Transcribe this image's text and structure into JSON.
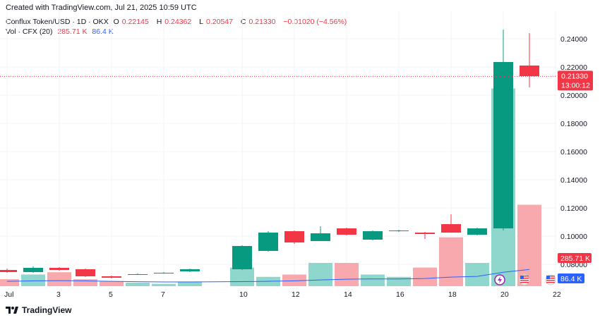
{
  "header": {
    "created_text": "Created with TradingView.com, Jul 21, 2025 10:59 UTC"
  },
  "legend": {
    "symbol": "Conflux Token/USD · 1D · OKX",
    "open_label": "O",
    "open": "0.22145",
    "high_label": "H",
    "high": "0.24362",
    "low_label": "L",
    "low": "0.20547",
    "close_label": "C",
    "close": "0.21330",
    "change": "−0.01020 (−4.56%)",
    "vol_label": "Vol · CFX (20)",
    "vol_value": "285.71 K",
    "vol_ma": "86.4 K"
  },
  "footer": {
    "brand": "TradingView"
  },
  "colors": {
    "up": "#089981",
    "down": "#f23645",
    "vol_up": "#8fd6cc",
    "vol_down": "#f7a9ae",
    "ma": "#2962ff"
  },
  "chart_data": {
    "type": "candlestick",
    "price_axis": {
      "min": 0.06,
      "max": 0.25,
      "ticks": [
        "0.24000",
        "0.22000",
        "0.20000",
        "0.18000",
        "0.16000",
        "0.14000",
        "0.12000",
        "0.10000",
        "0.08000"
      ]
    },
    "x_ticks": [
      "Jul",
      "3",
      "5",
      "7",
      "10",
      "12",
      "14",
      "16",
      "18",
      "20",
      "22"
    ],
    "last_price_label": "0.21330",
    "countdown_label": "13:00:12",
    "volume_label": "285.71 K",
    "volume_ma_label": "86.4 K",
    "candles": [
      {
        "day": 1,
        "o": 0.076,
        "h": 0.077,
        "l": 0.074,
        "c": 0.0745,
        "v": 0.3
      },
      {
        "day": 2,
        "o": 0.0745,
        "h": 0.0785,
        "l": 0.074,
        "c": 0.0775,
        "v": 0.5
      },
      {
        "day": 3,
        "o": 0.0775,
        "h": 0.078,
        "l": 0.0755,
        "c": 0.076,
        "v": 0.6
      },
      {
        "day": 4,
        "o": 0.0765,
        "h": 0.077,
        "l": 0.071,
        "c": 0.0715,
        "v": 0.3
      },
      {
        "day": 5,
        "o": 0.0715,
        "h": 0.072,
        "l": 0.07,
        "c": 0.0705,
        "v": 0.2
      },
      {
        "day": 6,
        "o": 0.073,
        "h": 0.0735,
        "l": 0.0725,
        "c": 0.073,
        "v": 0.15
      },
      {
        "day": 7,
        "o": 0.074,
        "h": 0.0745,
        "l": 0.0735,
        "c": 0.074,
        "v": 0.1
      },
      {
        "day": 8,
        "o": 0.075,
        "h": 0.077,
        "l": 0.0745,
        "c": 0.0765,
        "v": 0.2
      },
      {
        "day": 10,
        "o": 0.0765,
        "h": 0.0935,
        "l": 0.076,
        "c": 0.093,
        "v": 0.8
      },
      {
        "day": 11,
        "o": 0.0895,
        "h": 0.1035,
        "l": 0.089,
        "c": 0.1025,
        "v": 0.4
      },
      {
        "day": 12,
        "o": 0.1035,
        "h": 0.104,
        "l": 0.0945,
        "c": 0.0955,
        "v": 0.5
      },
      {
        "day": 13,
        "o": 0.0965,
        "h": 0.107,
        "l": 0.0965,
        "c": 0.102,
        "v": 1.0
      },
      {
        "day": 14,
        "o": 0.1055,
        "h": 0.106,
        "l": 0.1005,
        "c": 0.101,
        "v": 1.0
      },
      {
        "day": 15,
        "o": 0.0975,
        "h": 0.104,
        "l": 0.097,
        "c": 0.1035,
        "v": 0.5
      },
      {
        "day": 16,
        "o": 0.1035,
        "h": 0.1045,
        "l": 0.103,
        "c": 0.104,
        "v": 0.4
      },
      {
        "day": 17,
        "o": 0.1025,
        "h": 0.103,
        "l": 0.098,
        "c": 0.1015,
        "v": 0.8
      },
      {
        "day": 18,
        "o": 0.1085,
        "h": 0.1155,
        "l": 0.1025,
        "c": 0.1025,
        "v": 2.1
      },
      {
        "day": 19,
        "o": 0.101,
        "h": 0.106,
        "l": 0.1005,
        "c": 0.1055,
        "v": 1.0
      },
      {
        "day": 20,
        "o": 0.1055,
        "h": 0.2465,
        "l": 0.104,
        "c": 0.2235,
        "v": 8.5
      },
      {
        "day": 21,
        "o": 0.221,
        "h": 0.244,
        "l": 0.2055,
        "c": 0.2135,
        "v": 3.5
      }
    ],
    "volume_ma_values": [
      0.35,
      0.38,
      0.4,
      0.38,
      0.35,
      0.32,
      0.3,
      0.3,
      0.33,
      0.35,
      0.38,
      0.45,
      0.5,
      0.52,
      0.52,
      0.55,
      0.65,
      0.7,
      1.0,
      1.2
    ]
  }
}
